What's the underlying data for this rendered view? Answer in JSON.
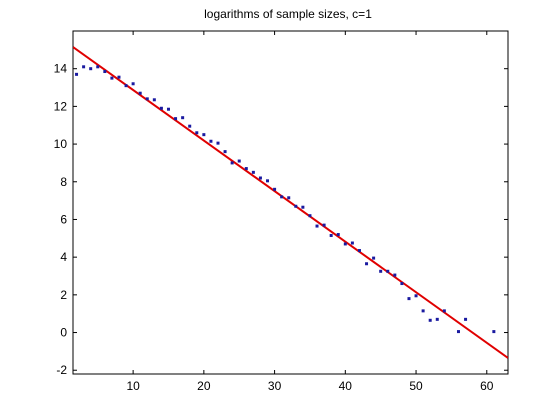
{
  "chart_data": {
    "type": "scatter",
    "title": "logarithms of sample sizes, c=1",
    "xlabel": "",
    "ylabel": "",
    "xlim": [
      1.5,
      63
    ],
    "ylim": [
      -2.2,
      16
    ],
    "xticks": [
      10,
      20,
      30,
      40,
      50,
      60
    ],
    "yticks": [
      -2,
      0,
      2,
      4,
      6,
      8,
      10,
      12,
      14
    ],
    "grid": false,
    "colors": {
      "points": "#1a1aa0",
      "line": "#e00000"
    },
    "series": [
      {
        "mark": "points",
        "x": [
          2,
          3,
          4,
          5,
          6,
          7,
          8,
          9,
          10,
          11,
          12,
          13,
          14,
          15,
          16,
          17,
          18,
          19,
          20,
          21,
          22,
          23,
          24,
          25,
          26,
          27,
          28,
          29,
          30,
          31,
          32,
          33,
          34,
          35,
          36,
          37,
          38,
          39,
          40,
          41,
          42,
          43,
          44,
          45,
          46,
          47,
          48,
          49,
          50,
          51,
          52,
          53,
          54,
          56,
          57,
          61
        ],
        "y": [
          13.7,
          14.1,
          14.0,
          14.1,
          13.85,
          13.5,
          13.55,
          13.1,
          13.2,
          12.7,
          12.4,
          12.35,
          11.9,
          11.85,
          11.35,
          11.4,
          10.95,
          10.6,
          10.5,
          10.15,
          10.05,
          9.6,
          9.0,
          9.1,
          8.7,
          8.5,
          8.2,
          8.05,
          7.6,
          7.2,
          7.15,
          6.7,
          6.65,
          6.2,
          5.65,
          5.7,
          5.15,
          5.2,
          4.7,
          4.75,
          4.35,
          3.65,
          3.95,
          3.25,
          3.25,
          3.05,
          2.6,
          1.8,
          1.95,
          1.15,
          0.65,
          0.7,
          1.15,
          0.05,
          0.7,
          0.05
        ]
      },
      {
        "mark": "line",
        "x": [
          1.5,
          63
        ],
        "y": [
          15.15,
          -1.35
        ]
      }
    ]
  }
}
